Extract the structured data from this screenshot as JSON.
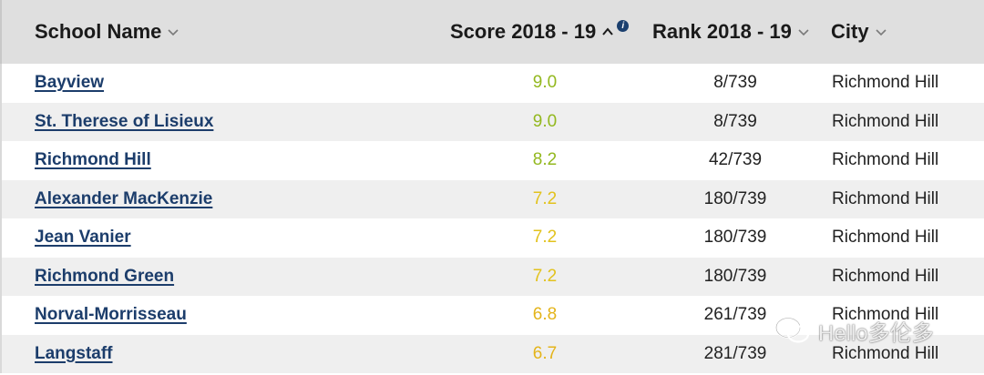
{
  "colors": {
    "header_bg": "#dfdfdf",
    "link": "#1c3d6b",
    "score_high": "#93b81f",
    "score_mid": "#e2c21c",
    "score_low": "#e4b41a"
  },
  "header": {
    "school": "School Name",
    "score": "Score 2018 - 19",
    "rank": "Rank 2018 - 19",
    "city": "City",
    "sort_indicator": "^",
    "info_icon": "info-icon"
  },
  "rows": [
    {
      "school": "Bayview",
      "score": "9.0",
      "rank": "8/739",
      "city": "Richmond Hill",
      "score_color": "#93b81f"
    },
    {
      "school": "St. Therese of Lisieux",
      "score": "9.0",
      "rank": "8/739",
      "city": "Richmond Hill",
      "score_color": "#93b81f"
    },
    {
      "school": "Richmond Hill",
      "score": "8.2",
      "rank": "42/739",
      "city": "Richmond Hill",
      "score_color": "#93b81f"
    },
    {
      "school": "Alexander MacKenzie",
      "score": "7.2",
      "rank": "180/739",
      "city": "Richmond Hill",
      "score_color": "#e2c21c"
    },
    {
      "school": "Jean Vanier",
      "score": "7.2",
      "rank": "180/739",
      "city": "Richmond Hill",
      "score_color": "#e2c21c"
    },
    {
      "school": "Richmond Green",
      "score": "7.2",
      "rank": "180/739",
      "city": "Richmond Hill",
      "score_color": "#e2c21c"
    },
    {
      "school": "Norval-Morrisseau",
      "score": "6.8",
      "rank": "261/739",
      "city": "Richmond Hill",
      "score_color": "#e4b41a"
    },
    {
      "school": "Langstaff",
      "score": "6.7",
      "rank": "281/739",
      "city": "Richmond Hill",
      "score_color": "#e4b41a"
    }
  ],
  "watermark": {
    "text": "Hello多伦多",
    "icon": "wechat-icon"
  }
}
